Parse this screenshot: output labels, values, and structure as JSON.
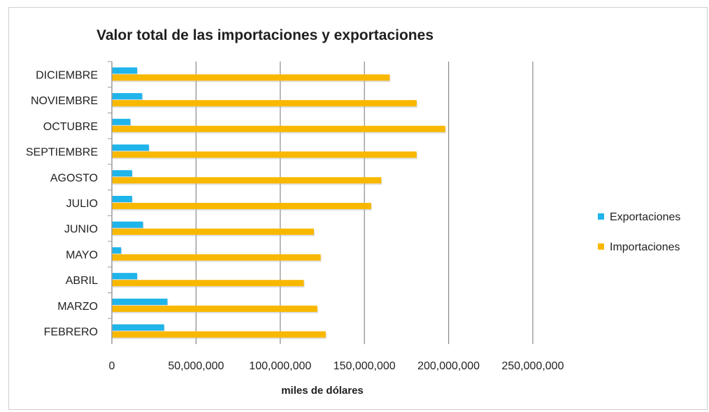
{
  "chart_data": {
    "type": "bar",
    "orientation": "horizontal",
    "title": "Valor total de las importaciones y exportaciones",
    "xlabel": "miles de dólares",
    "ylabel": "",
    "xlim": [
      0,
      250000000
    ],
    "xticks": [
      "0",
      "50,000,000",
      "100,000,000",
      "150,000,000",
      "200,000,000",
      "250,000,000"
    ],
    "grid": true,
    "legend_position": "right",
    "categories": [
      "FEBRERO",
      "MARZO",
      "ABRIL",
      "MAYO",
      "JUNIO",
      "JULIO",
      "AGOSTO",
      "SEPTIEMBRE",
      "OCTUBRE",
      "NOVIEMBRE",
      "DICIEMBRE"
    ],
    "series": [
      {
        "name": "Exportaciones",
        "color": "#1fb4ea",
        "values": [
          31000000,
          33000000,
          15000000,
          5500000,
          18500000,
          12000000,
          12000000,
          22000000,
          11000000,
          18000000,
          15000000
        ]
      },
      {
        "name": "Importaciones",
        "color": "#f9b800",
        "values": [
          127000000,
          122000000,
          114000000,
          124000000,
          120000000,
          154000000,
          160000000,
          181000000,
          198000000,
          181000000,
          165000000
        ]
      }
    ]
  }
}
